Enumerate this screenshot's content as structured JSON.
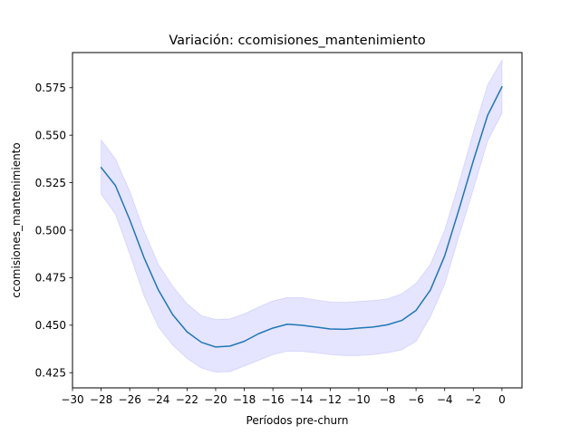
{
  "chart_data": {
    "type": "line",
    "title": "Variación: ccomisiones_mantenimiento",
    "xlabel": "Períodos pre-churn",
    "ylabel": "ccomisiones_mantenimiento",
    "xlim": [
      -30,
      1.4
    ],
    "ylim": [
      0.417,
      0.5935
    ],
    "xticks": [
      -30,
      -28,
      -26,
      -24,
      -22,
      -20,
      -18,
      -16,
      -14,
      -12,
      -10,
      -8,
      -6,
      -4,
      -2,
      0
    ],
    "xtick_labels": [
      "−30",
      "−28",
      "−26",
      "−24",
      "−22",
      "−20",
      "−18",
      "−16",
      "−14",
      "−12",
      "−10",
      "−8",
      "−6",
      "−4",
      "−2",
      "0"
    ],
    "yticks": [
      0.425,
      0.45,
      0.475,
      0.5,
      0.525,
      0.55,
      0.575
    ],
    "ytick_labels": [
      "0.425",
      "0.450",
      "0.475",
      "0.500",
      "0.525",
      "0.550",
      "0.575"
    ],
    "grid": false,
    "line_color": "#1f77b4",
    "band_color": "#0000ff",
    "x": [
      -28,
      -27,
      -26,
      -25,
      -24,
      -23,
      -22,
      -21,
      -20,
      -19,
      -18,
      -17,
      -16,
      -15,
      -14,
      -13,
      -12,
      -11,
      -10,
      -9,
      -8,
      -7,
      -6,
      -5,
      -4,
      -3,
      -2,
      -1,
      0
    ],
    "series": [
      {
        "values": [
          0.533,
          0.5235,
          0.5055,
          0.4855,
          0.4685,
          0.4555,
          0.4465,
          0.441,
          0.4385,
          0.439,
          0.4415,
          0.4455,
          0.4485,
          0.4505,
          0.45,
          0.449,
          0.448,
          0.4478,
          0.4485,
          0.449,
          0.4502,
          0.4525,
          0.4578,
          0.4685,
          0.4865,
          0.511,
          0.5365,
          0.5605,
          0.5755
        ],
        "lower": [
          0.519,
          0.5085,
          0.4875,
          0.4655,
          0.449,
          0.4395,
          0.4325,
          0.4275,
          0.4253,
          0.4255,
          0.4285,
          0.4315,
          0.4345,
          0.4363,
          0.4362,
          0.4355,
          0.4345,
          0.434,
          0.434,
          0.4345,
          0.4355,
          0.437,
          0.4415,
          0.4545,
          0.4715,
          0.497,
          0.5215,
          0.547,
          0.5615
        ],
        "upper": [
          0.5475,
          0.5375,
          0.5205,
          0.4995,
          0.482,
          0.4705,
          0.4613,
          0.455,
          0.453,
          0.4533,
          0.456,
          0.4595,
          0.4628,
          0.4645,
          0.4645,
          0.4633,
          0.4622,
          0.462,
          0.4625,
          0.463,
          0.4638,
          0.4665,
          0.472,
          0.482,
          0.5,
          0.525,
          0.5515,
          0.5765,
          0.5895
        ]
      }
    ]
  }
}
